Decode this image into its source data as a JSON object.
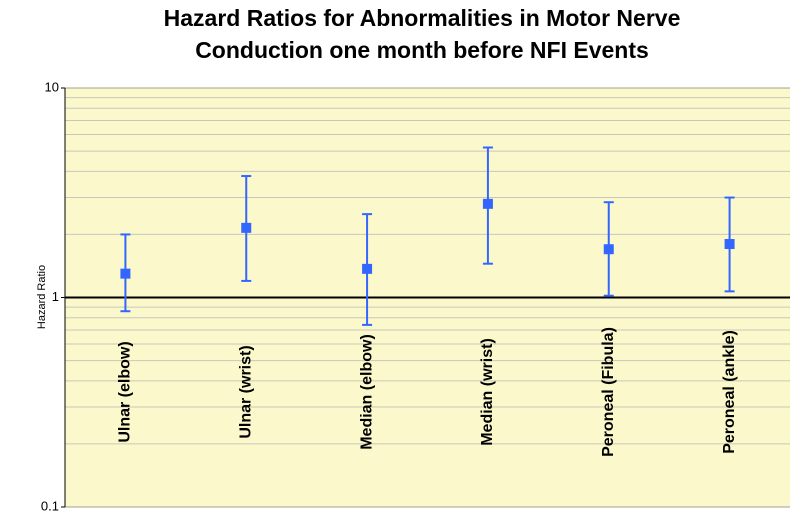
{
  "chart_data": {
    "type": "errorbar",
    "title": [
      "Hazard Ratios for Abnormalities in Motor Nerve",
      "Conduction one month before NFI Events"
    ],
    "y_label": "Hazard Ratio",
    "categories": [
      "Ulnar (elbow)",
      "Ulnar (wrist)",
      "Median (elbow)",
      "Median (wrist)",
      "Peroneal (Fibula)",
      "Peroneal (ankle)"
    ],
    "series": [
      {
        "color": "#3366ff",
        "values": [
          1.3,
          2.15,
          1.37,
          2.8,
          1.7,
          1.8
        ],
        "lower": [
          0.86,
          1.2,
          0.74,
          1.45,
          1.02,
          1.07
        ],
        "upper": [
          2.0,
          3.8,
          2.5,
          5.2,
          2.85,
          3.0
        ]
      }
    ],
    "ylim": [
      0.1,
      10
    ],
    "yticks": [
      0.1,
      1,
      10
    ],
    "minor_yticks": [
      0.2,
      0.3,
      0.4,
      0.5,
      0.6,
      0.7,
      0.8,
      0.9,
      2,
      3,
      4,
      5,
      6,
      7,
      8,
      9
    ],
    "log_y": true,
    "grid": true,
    "reference_line": 1,
    "background": "#fbf9cc"
  }
}
